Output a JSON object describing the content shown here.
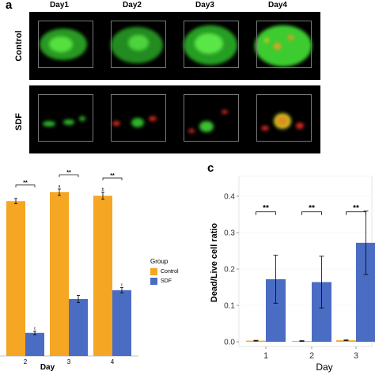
{
  "panel_a": {
    "letter": "a",
    "days": [
      "Day1",
      "Day2",
      "Day3",
      "Day4"
    ],
    "rows": [
      "Control",
      "SDF"
    ]
  },
  "panel_c_letter": "c",
  "legend": {
    "title": "Group",
    "items": [
      {
        "label": "Control",
        "color": "#F5A623"
      },
      {
        "label": "SDF",
        "color": "#4A6CC3"
      }
    ]
  },
  "chart_data": [
    {
      "type": "bar",
      "xlabel": "Day",
      "ylabel": "",
      "categories": [
        "2",
        "3",
        "4"
      ],
      "ylim": [
        0,
        1
      ],
      "series": [
        {
          "name": "Control",
          "values": [
            0.87,
            0.92,
            0.9
          ],
          "errors": [
            0.015,
            0.018,
            0.02
          ]
        },
        {
          "name": "SDF",
          "values": [
            0.13,
            0.32,
            0.37
          ],
          "errors": [
            0.01,
            0.02,
            0.015
          ]
        }
      ],
      "significance": [
        "**",
        "**",
        "**"
      ],
      "point_labels": {
        "control": [
          "",
          "a",
          "b"
        ],
        "sdf": [
          "c",
          "",
          "c"
        ]
      }
    },
    {
      "type": "bar",
      "xlabel": "Day",
      "ylabel": "Dead/Live cell ratio",
      "categories": [
        "1",
        "2",
        "3"
      ],
      "ylim": [
        0,
        0.4
      ],
      "yticks": [
        "0.0",
        "0.1",
        "0.2",
        "0.3",
        "0.4"
      ],
      "series": [
        {
          "name": "Control",
          "values": [
            0.003,
            0.002,
            0.004
          ],
          "errors": [
            0.001,
            0.001,
            0.001
          ]
        },
        {
          "name": "SDF",
          "values": [
            0.172,
            0.164,
            0.272
          ],
          "errors": [
            0.066,
            0.071,
            0.087
          ]
        }
      ],
      "significance": [
        "**",
        "**",
        "**"
      ]
    }
  ]
}
